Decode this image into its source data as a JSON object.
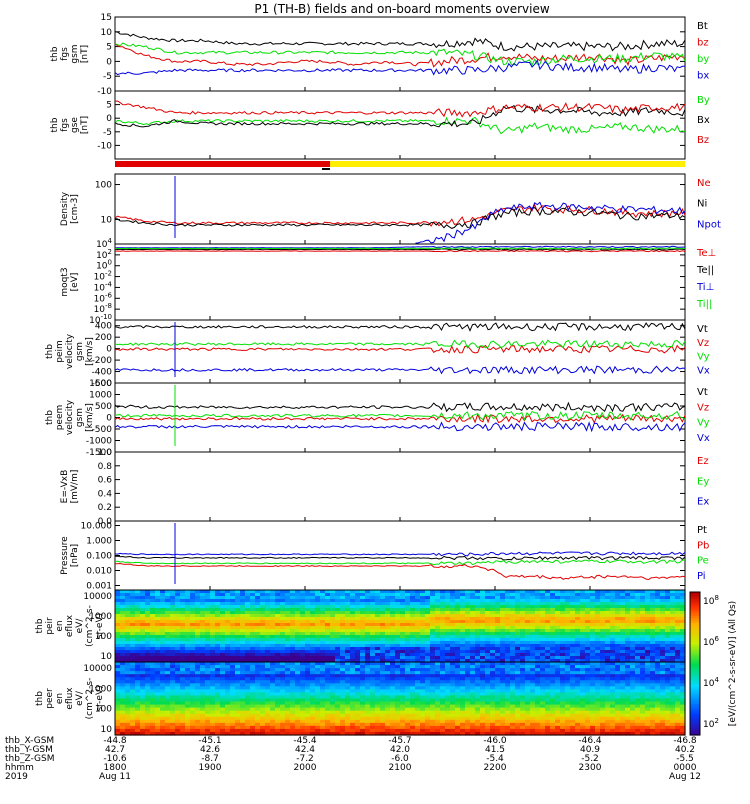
{
  "title": "P1 (TH-B) fields and on-board moments overview",
  "colors": {
    "black": "#000000",
    "red": "#e00000",
    "green": "#00e000",
    "blue": "#0000dd",
    "yellow": "#ffee00"
  },
  "chart_data": [
    {
      "type": "line",
      "panel": "fgs_gsm",
      "ylabel": [
        "thb",
        "fgs",
        "gsm",
        "[nT]"
      ],
      "ylim": [
        -10,
        15
      ],
      "yticks": [
        "15",
        "10",
        "5",
        "0",
        "-5",
        "-10"
      ],
      "series": [
        {
          "name": "Bt",
          "color": "#000000",
          "values": [
            10,
            8,
            7,
            7,
            6,
            6,
            6,
            6,
            6,
            6,
            6,
            6,
            7,
            5,
            5,
            5,
            5,
            5,
            6,
            6
          ]
        },
        {
          "name": "bz",
          "color": "#e00000",
          "values": [
            6,
            2,
            0,
            0,
            -1,
            -1,
            0,
            0,
            -1,
            0,
            -1,
            0,
            1,
            2,
            1,
            1,
            2,
            0,
            1,
            2
          ]
        },
        {
          "name": "by",
          "color": "#00e000",
          "values": [
            6,
            5,
            3,
            3,
            3,
            3,
            3,
            3,
            3,
            3,
            3,
            3,
            2,
            0,
            0,
            1,
            1,
            1,
            2,
            1
          ]
        },
        {
          "name": "bx",
          "color": "#0000dd",
          "values": [
            -4,
            -4,
            -3,
            -3,
            -3,
            -3,
            -3,
            -3,
            -3,
            -3,
            -3,
            -3,
            -3,
            -2,
            -1,
            -2,
            -2,
            -3,
            -2,
            -3
          ]
        }
      ]
    },
    {
      "type": "line",
      "panel": "fgs_gse",
      "ylabel": [
        "thb",
        "fgs",
        "gse",
        "[nT]"
      ],
      "ylim": [
        -15,
        10
      ],
      "yticks": [
        "5",
        "0",
        "-5",
        "-10"
      ],
      "series": [
        {
          "name": "By",
          "color": "#00e000",
          "values": [
            -1,
            -2,
            -1,
            -1,
            -1,
            -1,
            -1,
            -1,
            -1,
            -1,
            -1,
            -1,
            -1,
            -5,
            -3,
            -4,
            -4,
            -3,
            -4,
            -4
          ]
        },
        {
          "name": "Bx",
          "color": "#000000",
          "values": [
            -2,
            -3,
            -1,
            -2,
            -2,
            -2,
            -2,
            -2,
            -2,
            -2,
            -2,
            -2,
            -2,
            4,
            3,
            3,
            2,
            2,
            3,
            2
          ]
        },
        {
          "name": "Bz",
          "color": "#e00000",
          "values": [
            6,
            4,
            2,
            2,
            2,
            2,
            2,
            2,
            2,
            2,
            2,
            2,
            2,
            4,
            4,
            4,
            4,
            3,
            4,
            4
          ]
        }
      ]
    },
    {
      "type": "line",
      "panel": "density",
      "ylabel": [
        "Density",
        "[cm-3]"
      ],
      "yscale": "log",
      "ylim": [
        2,
        200
      ],
      "yticks": [
        "100",
        "10"
      ],
      "series": [
        {
          "name": "Ne",
          "color": "#e00000",
          "values": [
            12,
            9,
            8,
            8,
            8,
            8,
            8,
            8,
            8,
            8,
            8,
            9,
            10,
            18,
            22,
            20,
            19,
            16,
            15,
            16
          ]
        },
        {
          "name": "Ni",
          "color": "#000000",
          "values": [
            10,
            8,
            7,
            7,
            7,
            7,
            7,
            7,
            7,
            7,
            7,
            7,
            8,
            15,
            18,
            17,
            16,
            13,
            13,
            13
          ]
        },
        {
          "name": "Npot",
          "color": "#0000dd",
          "values": [
            null,
            null,
            null,
            null,
            null,
            null,
            null,
            null,
            null,
            null,
            2,
            3,
            6,
            20,
            25,
            24,
            22,
            20,
            19,
            18
          ]
        }
      ]
    },
    {
      "type": "line",
      "panel": "temperature",
      "ylabel": [
        "moqt3",
        "[eV]"
      ],
      "yscale": "log",
      "ylim": [
        1e-10,
        10000.0
      ],
      "yticks": [
        "10^4",
        "10^2",
        "10^0",
        "10^-2",
        "10^-4",
        "10^-6",
        "10^-8",
        "10^-10"
      ],
      "series": [
        {
          "name": "Te⊥",
          "color": "#e00000",
          "values": [
            500,
            500,
            500,
            500,
            500,
            500,
            500,
            500,
            500,
            500,
            500,
            500,
            500,
            500,
            500,
            500,
            500,
            500,
            500,
            500
          ]
        },
        {
          "name": "Te||",
          "color": "#000000",
          "values": [
            1000,
            1000,
            1000,
            1000,
            1000,
            1000,
            1000,
            1000,
            1000,
            1000,
            1000,
            1000,
            1000,
            1000,
            1000,
            1000,
            1000,
            1000,
            1000,
            1000
          ]
        },
        {
          "name": "Ti⊥",
          "color": "#0000dd",
          "values": [
            2000,
            2000,
            2000,
            2000,
            2000,
            2000,
            2000,
            2000,
            2000,
            2000,
            3000,
            3000,
            3000,
            3000,
            3000,
            3000,
            3000,
            3000,
            3000,
            3000
          ]
        },
        {
          "name": "Ti||",
          "color": "#00e000",
          "values": [
            1500,
            1500,
            1500,
            1500,
            1500,
            1500,
            1500,
            1500,
            1500,
            1500,
            1500,
            1500,
            1500,
            1500,
            1500,
            1500,
            1500,
            1500,
            1500,
            1500
          ]
        }
      ]
    },
    {
      "type": "line",
      "panel": "peim_velocity",
      "ylabel": [
        "thb",
        "peim",
        "velocity",
        "gsm",
        "[km/s]"
      ],
      "ylim": [
        -600,
        500
      ],
      "yticks": [
        "400",
        "200",
        "0",
        "-200",
        "-400",
        "-600"
      ],
      "series": [
        {
          "name": "Vt",
          "color": "#000000",
          "values": [
            380,
            380,
            380,
            380,
            380,
            380,
            380,
            380,
            380,
            380,
            380,
            380,
            380,
            380,
            380,
            380,
            380,
            380,
            380,
            380
          ]
        },
        {
          "name": "Vz",
          "color": "#e00000",
          "values": [
            -10,
            -10,
            -10,
            -10,
            -10,
            -10,
            -10,
            -10,
            -10,
            -10,
            -10,
            -10,
            -10,
            -10,
            -10,
            -10,
            -10,
            -10,
            -10,
            -10
          ]
        },
        {
          "name": "Vy",
          "color": "#00e000",
          "values": [
            80,
            80,
            80,
            80,
            80,
            80,
            80,
            80,
            80,
            80,
            80,
            80,
            80,
            80,
            80,
            80,
            80,
            80,
            80,
            80
          ]
        },
        {
          "name": "Vx",
          "color": "#0000dd",
          "values": [
            -370,
            -370,
            -370,
            -370,
            -370,
            -370,
            -370,
            -370,
            -370,
            -370,
            -370,
            -370,
            -370,
            -370,
            -370,
            -370,
            -370,
            -370,
            -370,
            -370
          ]
        }
      ]
    },
    {
      "type": "line",
      "panel": "peem_velocity",
      "ylabel": [
        "thb",
        "peem",
        "velocity",
        "gsm",
        "[km/s]"
      ],
      "ylim": [
        -1500,
        1500
      ],
      "yticks": [
        "1500",
        "1000",
        "500",
        "0",
        "-500",
        "-1000",
        "-1500"
      ],
      "series": [
        {
          "name": "Vt",
          "color": "#000000",
          "values": [
            500,
            450,
            450,
            450,
            450,
            450,
            450,
            450,
            450,
            450,
            450,
            450,
            450,
            450,
            450,
            450,
            450,
            450,
            450,
            450
          ]
        },
        {
          "name": "Vz",
          "color": "#e00000",
          "values": [
            -50,
            -50,
            -50,
            -50,
            -50,
            -50,
            -50,
            -50,
            -50,
            -50,
            -50,
            -50,
            -50,
            -50,
            -50,
            -50,
            -50,
            -50,
            -50,
            -50
          ]
        },
        {
          "name": "Vy",
          "color": "#00e000",
          "values": [
            80,
            80,
            80,
            80,
            80,
            80,
            80,
            80,
            80,
            80,
            80,
            80,
            80,
            80,
            80,
            80,
            80,
            80,
            80,
            80
          ]
        },
        {
          "name": "Vx",
          "color": "#0000dd",
          "values": [
            -400,
            -400,
            -400,
            -400,
            -400,
            -400,
            -400,
            -400,
            -400,
            -400,
            -400,
            -400,
            -400,
            -400,
            -400,
            -400,
            -400,
            -400,
            -400,
            -400
          ]
        }
      ]
    },
    {
      "type": "line",
      "panel": "efield",
      "ylabel": [
        "E=-VxB",
        "[mV/m]"
      ],
      "ylim": [
        0,
        1
      ],
      "yticks": [
        "1.0",
        "0.8",
        "0.6",
        "0.4",
        "0.2",
        "0.0"
      ],
      "series": [
        {
          "name": "Ez",
          "color": "#e00000",
          "values": []
        },
        {
          "name": "Ey",
          "color": "#00e000",
          "values": []
        },
        {
          "name": "Ex",
          "color": "#0000dd",
          "values": []
        }
      ]
    },
    {
      "type": "line",
      "panel": "pressure",
      "ylabel": [
        "Pressure",
        "[nPa]"
      ],
      "yscale": "log",
      "ylim": [
        0.0005,
        20
      ],
      "yticks": [
        "10.000",
        "1.000",
        "0.100",
        "0.010",
        "0.001"
      ],
      "series": [
        {
          "name": "Pt",
          "color": "#000000",
          "values": [
            0.09,
            0.07,
            0.07,
            0.07,
            0.07,
            0.07,
            0.07,
            0.07,
            0.07,
            0.07,
            0.07,
            0.07,
            0.07,
            0.06,
            0.07,
            0.07,
            0.07,
            0.07,
            0.07,
            0.07
          ]
        },
        {
          "name": "Pb",
          "color": "#e00000",
          "values": [
            0.03,
            0.02,
            0.02,
            0.02,
            0.02,
            0.02,
            0.02,
            0.02,
            0.02,
            0.02,
            0.02,
            0.02,
            0.02,
            0.004,
            0.004,
            0.003,
            0.004,
            0.004,
            0.003,
            0.004
          ]
        },
        {
          "name": "Pe",
          "color": "#00e000",
          "values": [
            0.04,
            0.03,
            0.03,
            0.03,
            0.03,
            0.03,
            0.03,
            0.03,
            0.03,
            0.03,
            0.03,
            0.03,
            0.03,
            0.04,
            0.04,
            0.04,
            0.04,
            0.04,
            0.04,
            0.04
          ]
        },
        {
          "name": "Pi",
          "color": "#0000dd",
          "values": [
            0.13,
            0.12,
            0.12,
            0.12,
            0.12,
            0.12,
            0.12,
            0.12,
            0.12,
            0.12,
            0.12,
            0.12,
            0.12,
            0.14,
            0.14,
            0.14,
            0.14,
            0.14,
            0.14,
            0.14
          ]
        }
      ]
    },
    {
      "type": "heatmap",
      "panel": "peir_en_eflux",
      "ylabel": [
        "thb",
        "peir",
        "en",
        "eflux",
        "eV/",
        "(cm^2-s-",
        "sr-eV)"
      ],
      "yscale": "log",
      "ylim": [
        5,
        20000
      ],
      "yticks": [
        "10000",
        "1000",
        "100",
        "10"
      ]
    },
    {
      "type": "heatmap",
      "panel": "peer_en_eflux",
      "ylabel": [
        "thb",
        "peer",
        "en",
        "eflux",
        "eV/",
        "(cm^2-s-",
        "sr-eV)"
      ],
      "yscale": "log",
      "ylim": [
        5,
        20000
      ],
      "yticks": [
        "10000",
        "1000",
        "100",
        "10"
      ]
    }
  ],
  "colorbar": {
    "label": "[eV/(cm^2-s-sr-eV)] (All Qs)",
    "ticks": [
      "10^8",
      "10^6",
      "10^4",
      "10^2"
    ]
  },
  "xaxis": {
    "rows": [
      {
        "label": "thb_X-GSM",
        "values": [
          "-44.8",
          "-45.1",
          "-45.4",
          "-45.7",
          "-46.0",
          "-46.4",
          "-46.8"
        ]
      },
      {
        "label": "thb_Y-GSM",
        "values": [
          "42.7",
          "42.6",
          "42.4",
          "42.0",
          "41.5",
          "40.9",
          "40.2"
        ]
      },
      {
        "label": "thb_Z-GSM",
        "values": [
          "-10.6",
          "-8.7",
          "-7.2",
          "-6.0",
          "-5.4",
          "-5.2",
          "-5.5"
        ]
      },
      {
        "label": "hhmm",
        "values": [
          "1800",
          "1900",
          "2000",
          "2100",
          "2200",
          "2300",
          "0000"
        ]
      },
      {
        "label": "2019",
        "values": [
          "Aug 11",
          "",
          "",
          "",
          "",
          "",
          "Aug 12"
        ]
      }
    ]
  }
}
